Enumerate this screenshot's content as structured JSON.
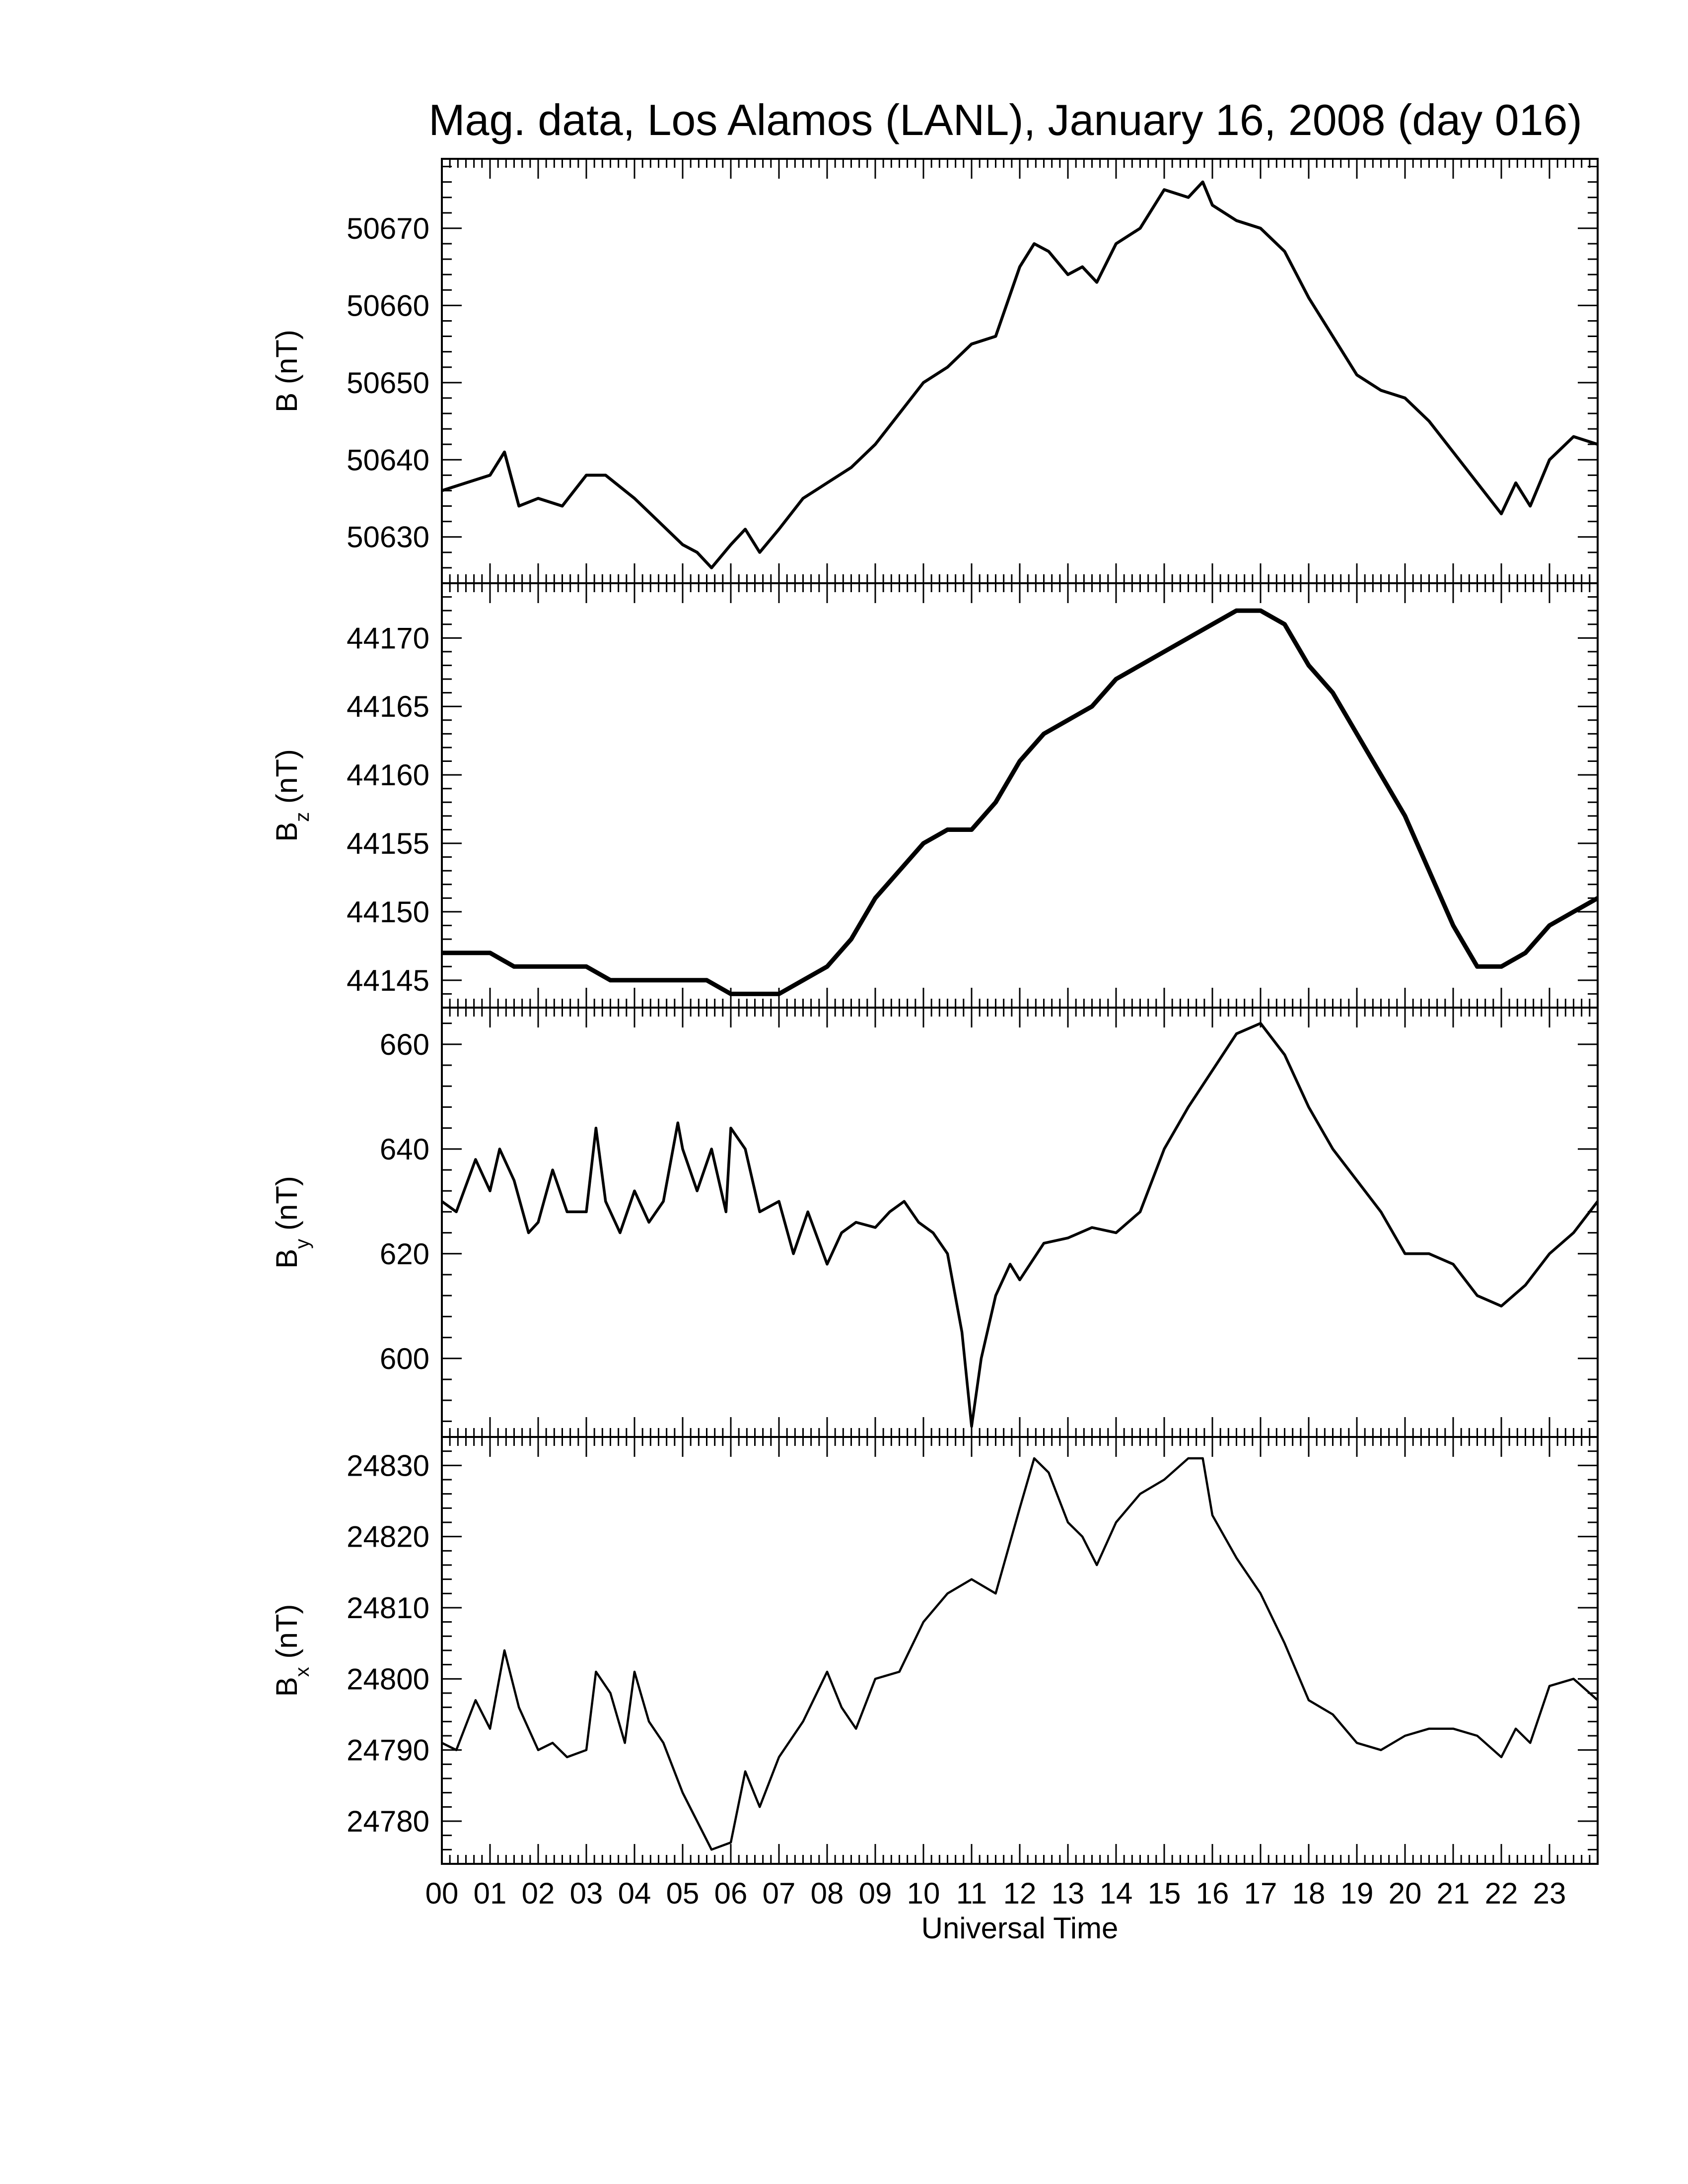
{
  "title": "Mag. data, Los Alamos (LANL), January 16, 2008 (day 016)",
  "chart_data": [
    {
      "type": "line",
      "ylabel_base": "B",
      "ylabel_sub": "",
      "ylabel_unit": "(nT)",
      "ylim": [
        50624,
        50679
      ],
      "yticks": [
        50630,
        50640,
        50650,
        50660,
        50670
      ],
      "x": [
        0,
        0.5,
        1,
        1.3,
        1.6,
        2,
        2.5,
        3,
        3.4,
        3.8,
        4,
        4.5,
        5,
        5.3,
        5.6,
        6,
        6.3,
        6.6,
        7,
        7.5,
        8,
        8.5,
        9,
        9.5,
        10,
        10.5,
        11,
        11.5,
        12,
        12.3,
        12.6,
        13,
        13.3,
        13.6,
        14,
        14.5,
        15,
        15.5,
        15.8,
        16,
        16.5,
        17,
        17.5,
        18,
        18.5,
        19,
        19.5,
        20,
        20.5,
        21,
        21.5,
        22,
        22.3,
        22.6,
        23,
        23.5,
        24
      ],
      "series": [
        {
          "values": [
            50636,
            50637,
            50638,
            50641,
            50634,
            50635,
            50634,
            50638,
            50638,
            50636,
            50635,
            50632,
            50629,
            50628,
            50626,
            50629,
            50631,
            50628,
            50631,
            50635,
            50637,
            50639,
            50642,
            50646,
            50650,
            50652,
            50655,
            50656,
            50665,
            50668,
            50667,
            50664,
            50665,
            50663,
            50668,
            50670,
            50675,
            50674,
            50676,
            50673,
            50671,
            50670,
            50667,
            50661,
            50656,
            50651,
            50649,
            50648,
            50645,
            50641,
            50637,
            50633,
            50637,
            50634,
            50640,
            50643,
            50642
          ]
        }
      ]
    },
    {
      "type": "line",
      "ylabel_base": "B",
      "ylabel_sub": "z",
      "ylabel_unit": "(nT)",
      "ylim": [
        44143,
        44174
      ],
      "yticks": [
        44145,
        44150,
        44155,
        44160,
        44165,
        44170
      ],
      "x": [
        0,
        0.5,
        1,
        1.5,
        2,
        2.5,
        3,
        3.5,
        4,
        4.5,
        5,
        5.5,
        6,
        6.5,
        7,
        7.5,
        8,
        8.5,
        9,
        9.5,
        10,
        10.5,
        11,
        11.5,
        12,
        12.5,
        13,
        13.5,
        14,
        14.5,
        15,
        15.5,
        16,
        16.5,
        17,
        17.5,
        18,
        18.5,
        19,
        19.5,
        20,
        20.5,
        21,
        21.5,
        22,
        22.5,
        23,
        23.5,
        24
      ],
      "series": [
        {
          "values": [
            44147,
            44147,
            44147,
            44146,
            44146,
            44146,
            44146,
            44145,
            44145,
            44145,
            44145,
            44145,
            44144,
            44144,
            44144,
            44145,
            44146,
            44148,
            44151,
            44153,
            44155,
            44156,
            44156,
            44158,
            44161,
            44163,
            44164,
            44165,
            44167,
            44168,
            44169,
            44170,
            44171,
            44172,
            44172,
            44171,
            44168,
            44166,
            44163,
            44160,
            44157,
            44153,
            44149,
            44146,
            44146,
            44147,
            44149,
            44150,
            44151
          ]
        }
      ]
    },
    {
      "type": "line",
      "ylabel_base": "B",
      "ylabel_sub": "y",
      "ylabel_unit": "(nT)",
      "ylim": [
        585,
        667
      ],
      "yticks": [
        600,
        620,
        640,
        660
      ],
      "x": [
        0,
        0.3,
        0.7,
        1,
        1.2,
        1.5,
        1.8,
        2,
        2.3,
        2.6,
        3,
        3.2,
        3.4,
        3.7,
        4,
        4.3,
        4.6,
        4.9,
        5,
        5.3,
        5.6,
        5.9,
        6,
        6.3,
        6.6,
        7,
        7.3,
        7.6,
        8,
        8.3,
        8.6,
        9,
        9.3,
        9.6,
        9.9,
        10.2,
        10.5,
        10.8,
        11,
        11.2,
        11.5,
        11.8,
        12,
        12.5,
        13,
        13.5,
        14,
        14.5,
        15,
        15.5,
        16,
        16.5,
        17,
        17.5,
        18,
        18.5,
        19,
        19.5,
        20,
        20.5,
        21,
        21.5,
        22,
        22.5,
        23,
        23.5,
        24
      ],
      "series": [
        {
          "values": [
            630,
            628,
            638,
            632,
            640,
            634,
            624,
            626,
            636,
            628,
            628,
            644,
            630,
            624,
            632,
            626,
            630,
            645,
            640,
            632,
            640,
            628,
            644,
            640,
            628,
            630,
            620,
            628,
            618,
            624,
            626,
            625,
            628,
            630,
            626,
            624,
            620,
            605,
            587,
            600,
            612,
            618,
            615,
            622,
            623,
            625,
            624,
            628,
            640,
            648,
            655,
            662,
            664,
            658,
            648,
            640,
            634,
            628,
            620,
            620,
            618,
            612,
            610,
            614,
            620,
            624,
            630
          ]
        }
      ]
    },
    {
      "type": "line",
      "ylabel_base": "B",
      "ylabel_sub": "x",
      "ylabel_unit": "(nT)",
      "ylim": [
        24774,
        24834
      ],
      "yticks": [
        24780,
        24790,
        24800,
        24810,
        24820,
        24830
      ],
      "x": [
        0,
        0.3,
        0.7,
        1,
        1.3,
        1.6,
        2,
        2.3,
        2.6,
        3,
        3.2,
        3.5,
        3.8,
        4,
        4.3,
        4.6,
        5,
        5.3,
        5.6,
        6,
        6.3,
        6.6,
        7,
        7.5,
        8,
        8.3,
        8.6,
        9,
        9.5,
        10,
        10.5,
        11,
        11.5,
        12,
        12.3,
        12.6,
        13,
        13.3,
        13.6,
        14,
        14.5,
        15,
        15.5,
        15.8,
        16,
        16.5,
        17,
        17.5,
        18,
        18.5,
        19,
        19.5,
        20,
        20.5,
        21,
        21.5,
        22,
        22.3,
        22.6,
        23,
        23.5,
        24
      ],
      "series": [
        {
          "values": [
            24791,
            24790,
            24797,
            24793,
            24804,
            24796,
            24790,
            24791,
            24789,
            24790,
            24801,
            24798,
            24791,
            24801,
            24794,
            24791,
            24784,
            24780,
            24776,
            24777,
            24787,
            24782,
            24789,
            24794,
            24801,
            24796,
            24793,
            24800,
            24801,
            24808,
            24812,
            24814,
            24812,
            24824,
            24831,
            24829,
            24822,
            24820,
            24816,
            24822,
            24826,
            24828,
            24831,
            24831,
            24823,
            24817,
            24812,
            24805,
            24797,
            24795,
            24791,
            24790,
            24792,
            24793,
            24793,
            24792,
            24789,
            24793,
            24791,
            24799,
            24800,
            24797
          ]
        }
      ]
    }
  ],
  "xaxis": {
    "label": "Universal Time",
    "ticks": [
      "00",
      "01",
      "02",
      "03",
      "04",
      "05",
      "06",
      "07",
      "08",
      "09",
      "10",
      "11",
      "12",
      "13",
      "14",
      "15",
      "16",
      "17",
      "18",
      "19",
      "20",
      "21",
      "22",
      "23"
    ]
  }
}
